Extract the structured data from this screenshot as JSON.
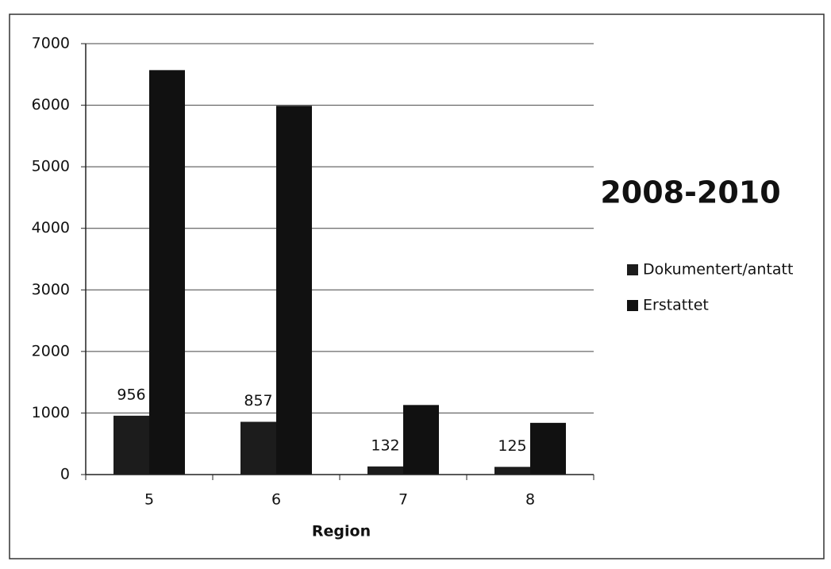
{
  "chart_data": {
    "type": "bar",
    "title": "2008-2010",
    "xlabel": "Region",
    "categories": [
      "5",
      "6",
      "7",
      "8"
    ],
    "series": [
      {
        "name": "Dokumentert/antatt",
        "color": "#1c1c1c",
        "values": [
          956,
          857,
          132,
          125
        ]
      },
      {
        "name": "Erstattet",
        "color": "#111111",
        "values": [
          6570,
          5990,
          1130,
          840
        ]
      }
    ],
    "ylim": [
      0,
      7000
    ],
    "yticks": [
      0,
      1000,
      2000,
      3000,
      4000,
      5000,
      6000,
      7000
    ],
    "grid": true,
    "legend": "right"
  }
}
